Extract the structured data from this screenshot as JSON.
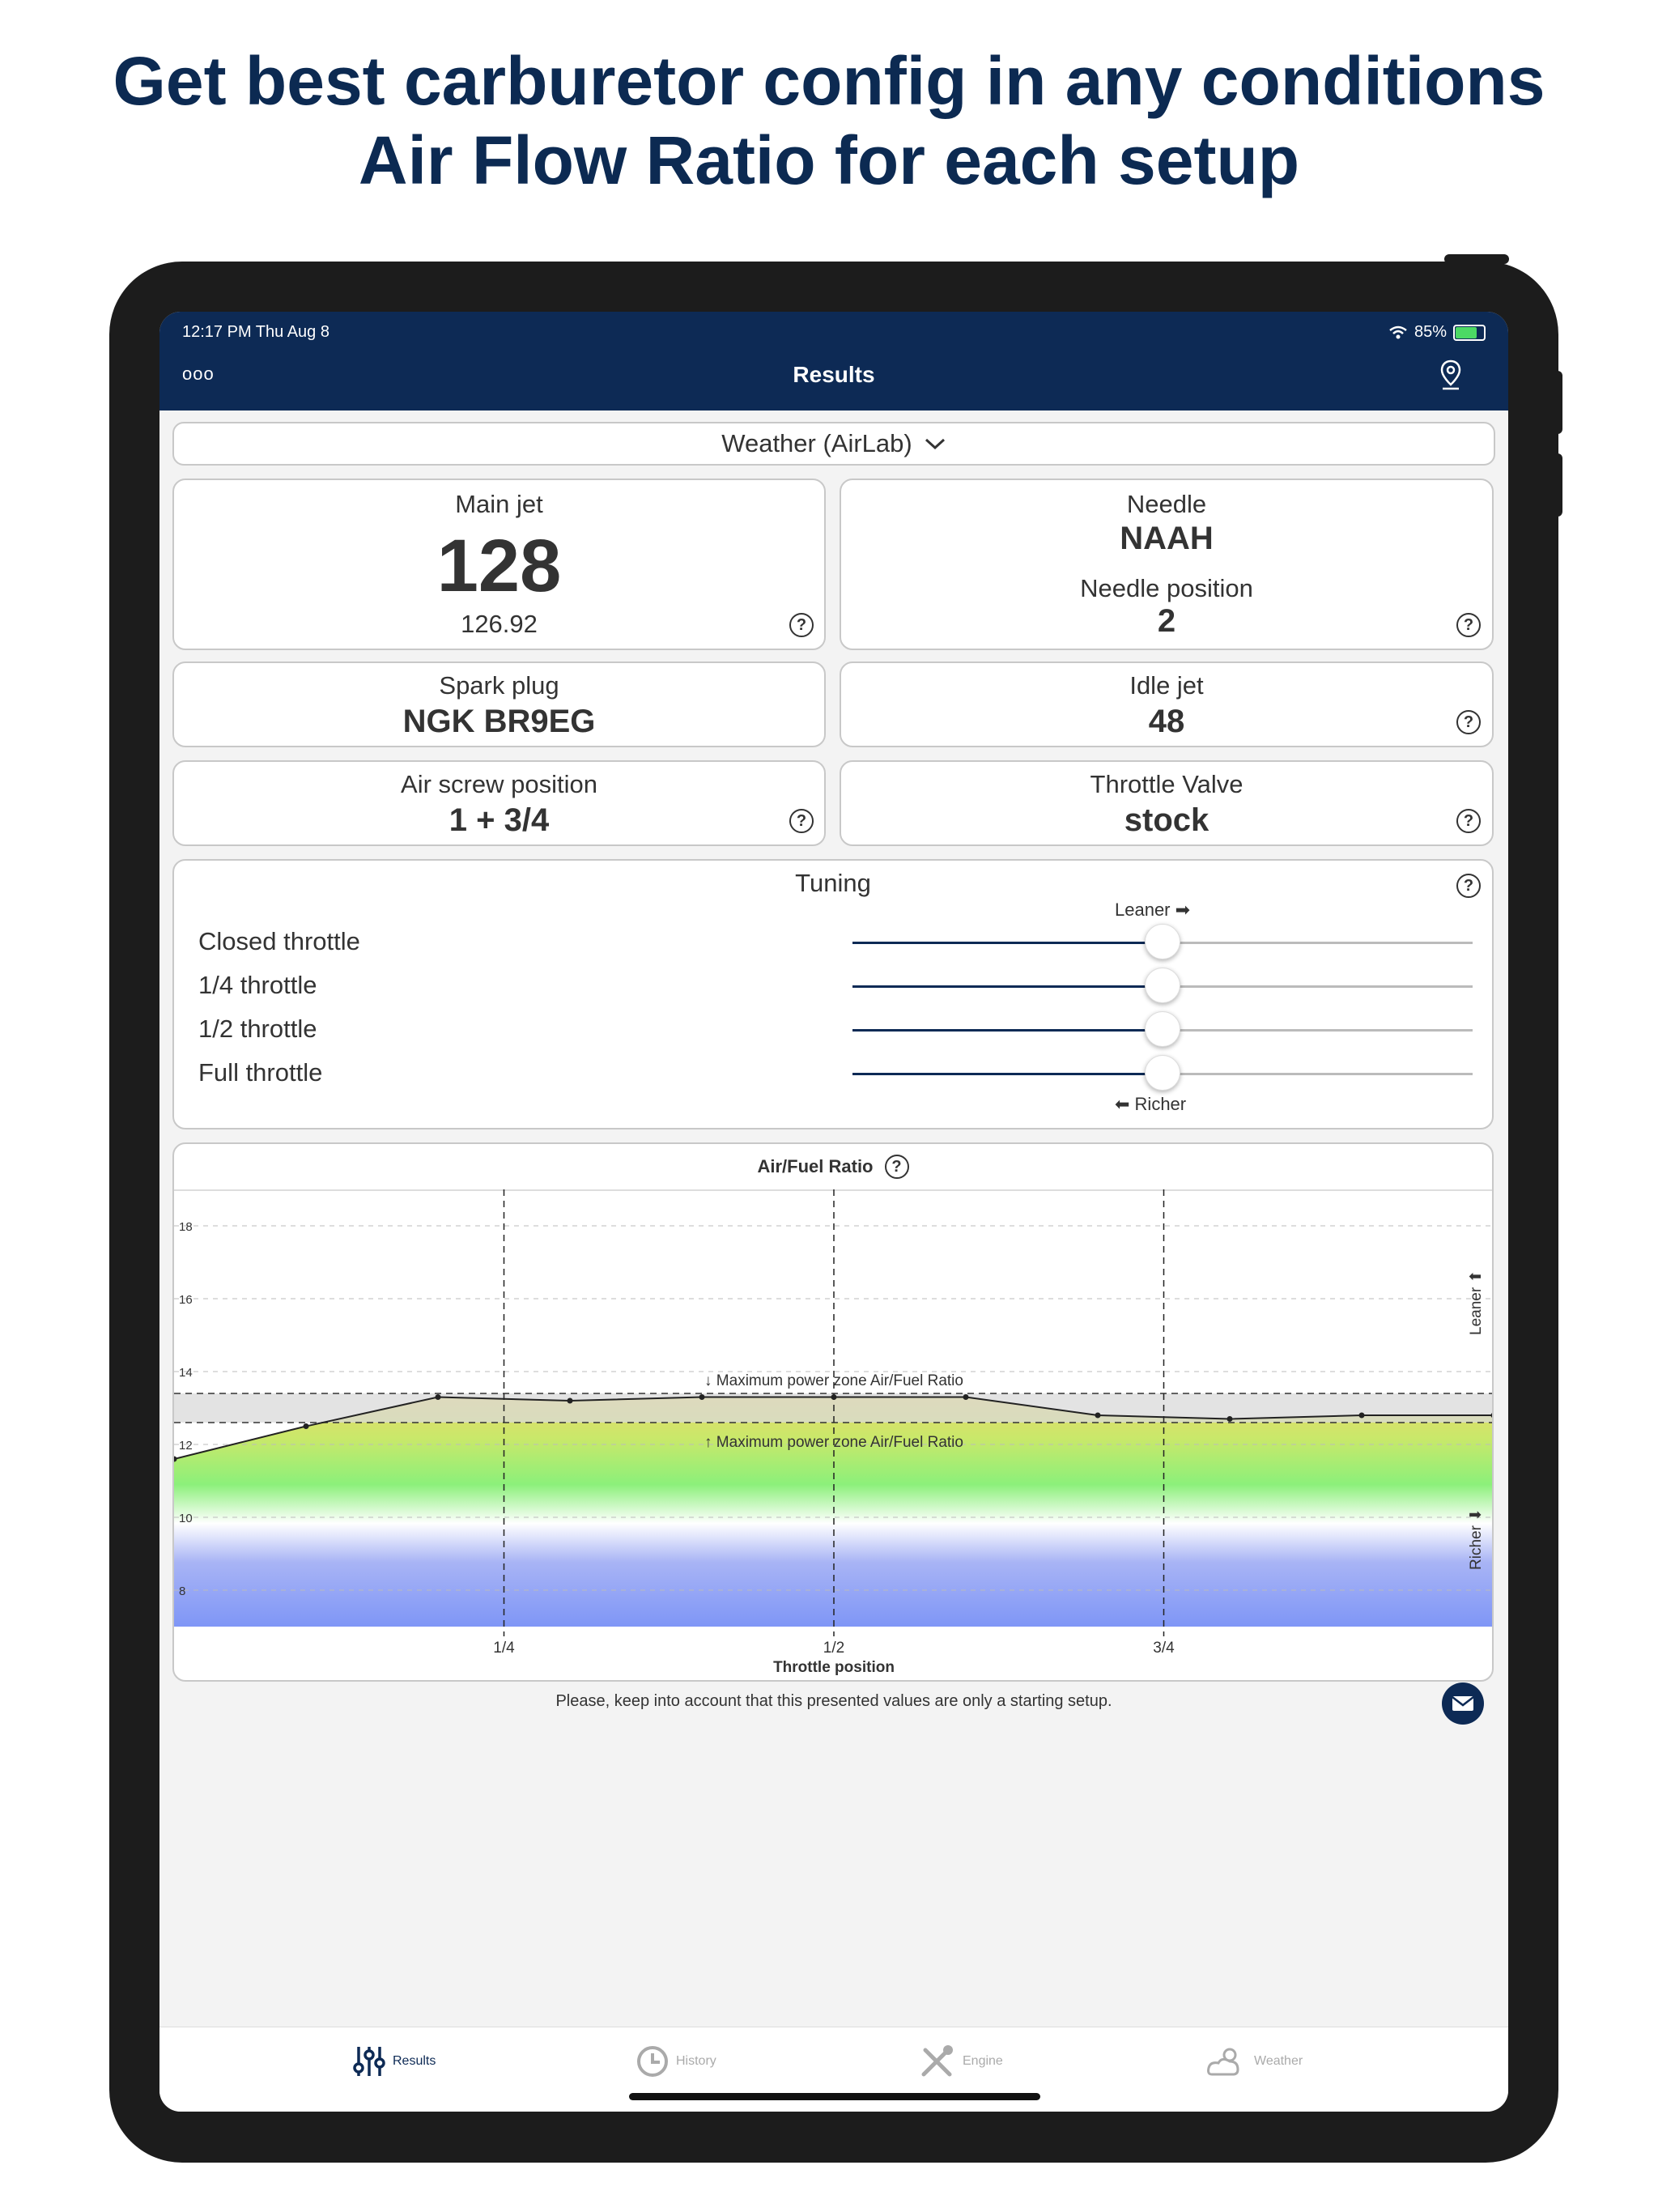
{
  "headline": {
    "line1": "Get best carburetor config in any conditions",
    "line2": "Air Flow Ratio for each setup"
  },
  "status_bar": {
    "time": "12:17 PM   Thu Aug 8",
    "battery": "85%"
  },
  "nav": {
    "more": "ooo",
    "title": "Results"
  },
  "weather_selector": {
    "label": "Weather (AirLab)"
  },
  "cards": {
    "main_jet": {
      "label": "Main jet",
      "value": "128",
      "exact": "126.92"
    },
    "needle": {
      "label": "Needle",
      "value": "NAAH",
      "pos_label": "Needle position",
      "pos_value": "2"
    },
    "spark_plug": {
      "label": "Spark plug",
      "value": "NGK BR9EG"
    },
    "idle_jet": {
      "label": "Idle jet",
      "value": "48"
    },
    "air_screw": {
      "label": "Air screw position",
      "value": "1 + 3/4"
    },
    "throttle_valve": {
      "label": "Throttle Valve",
      "value": "stock"
    }
  },
  "tuning": {
    "title": "Tuning",
    "leaner_label": "Leaner ➡",
    "richer_label": "⬅ Richer",
    "rows": [
      {
        "label": "Closed throttle",
        "level": 0.5
      },
      {
        "label": "1/4 throttle",
        "level": 0.5
      },
      {
        "label": "1/2 throttle",
        "level": 0.5
      },
      {
        "label": "Full throttle",
        "level": 0.5
      }
    ]
  },
  "chart_title": "Air/Fuel Ratio",
  "chart_data": {
    "type": "line",
    "title": "Air/Fuel Ratio",
    "xlabel": "Throttle position",
    "x_ticks": [
      "1/4",
      "1/2",
      "3/4"
    ],
    "y_ticks": [
      8,
      10,
      12,
      14,
      16,
      18
    ],
    "ylim": [
      7,
      19
    ],
    "xlim": [
      0,
      1
    ],
    "grid": true,
    "side_labels": {
      "top": "Leaner",
      "bottom": "Richer"
    },
    "band": {
      "low": 12.6,
      "high": 13.4,
      "upper_label": "↓ Maximum power zone Air/Fuel Ratio",
      "lower_label": "↑ Maximum power zone Air/Fuel Ratio"
    },
    "series": [
      {
        "x": [
          0,
          0.1,
          0.2,
          0.3,
          0.4,
          0.5,
          0.6,
          0.7,
          0.8,
          0.9,
          1.0
        ],
        "y": [
          11.6,
          12.5,
          13.3,
          13.2,
          13.3,
          13.3,
          13.3,
          12.8,
          12.7,
          12.8,
          12.8
        ]
      }
    ]
  },
  "footer_note": "Please, keep into account that this presented values are only a starting setup.",
  "tabs": [
    {
      "label": "Results",
      "icon": "sliders-icon",
      "active": true
    },
    {
      "label": "History",
      "icon": "clock-icon",
      "active": false
    },
    {
      "label": "Engine",
      "icon": "tools-icon",
      "active": false
    },
    {
      "label": "Weather",
      "icon": "weather-icon",
      "active": false
    }
  ]
}
